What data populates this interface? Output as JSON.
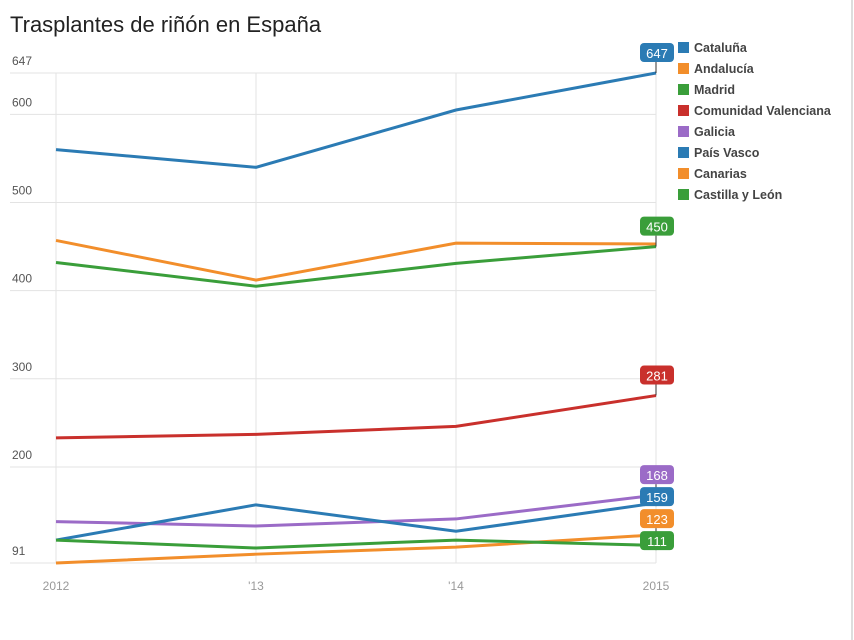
{
  "chart_data": {
    "type": "line",
    "title": "Trasplantes de riñón en España",
    "categories": [
      "2012",
      "'13",
      "'14",
      "2015"
    ],
    "y_ticks": [
      91,
      200,
      300,
      400,
      500,
      600,
      647
    ],
    "ylim": [
      91,
      647
    ],
    "grid": true,
    "legend_position": "right",
    "series": [
      {
        "name": "Cataluña",
        "color": "#2b7bb4",
        "values": [
          560,
          540,
          605,
          647
        ],
        "end_label": "647"
      },
      {
        "name": "Andalucía",
        "color": "#f28e2b",
        "values": [
          457,
          412,
          454,
          453
        ],
        "end_label": ""
      },
      {
        "name": "Madrid",
        "color": "#3a9e3a",
        "values": [
          432,
          405,
          431,
          450
        ],
        "end_label": "450"
      },
      {
        "name": "Comunidad Valenciana",
        "color": "#c9302c",
        "values": [
          233,
          237,
          246,
          281
        ],
        "end_label": "281"
      },
      {
        "name": "Galicia",
        "color": "#9b6bc7",
        "values": [
          138,
          133,
          141,
          168
        ],
        "end_label": "168"
      },
      {
        "name": "País Vasco",
        "color": "#2b7bb4",
        "values": [
          117,
          157,
          127,
          159
        ],
        "end_label": "159"
      },
      {
        "name": "Canarias",
        "color": "#f28e2b",
        "values": [
          91,
          101,
          109,
          123
        ],
        "end_label": "123"
      },
      {
        "name": "Castilla y León",
        "color": "#3a9e3a",
        "values": [
          117,
          108,
          117,
          111
        ],
        "end_label": "111"
      }
    ]
  }
}
